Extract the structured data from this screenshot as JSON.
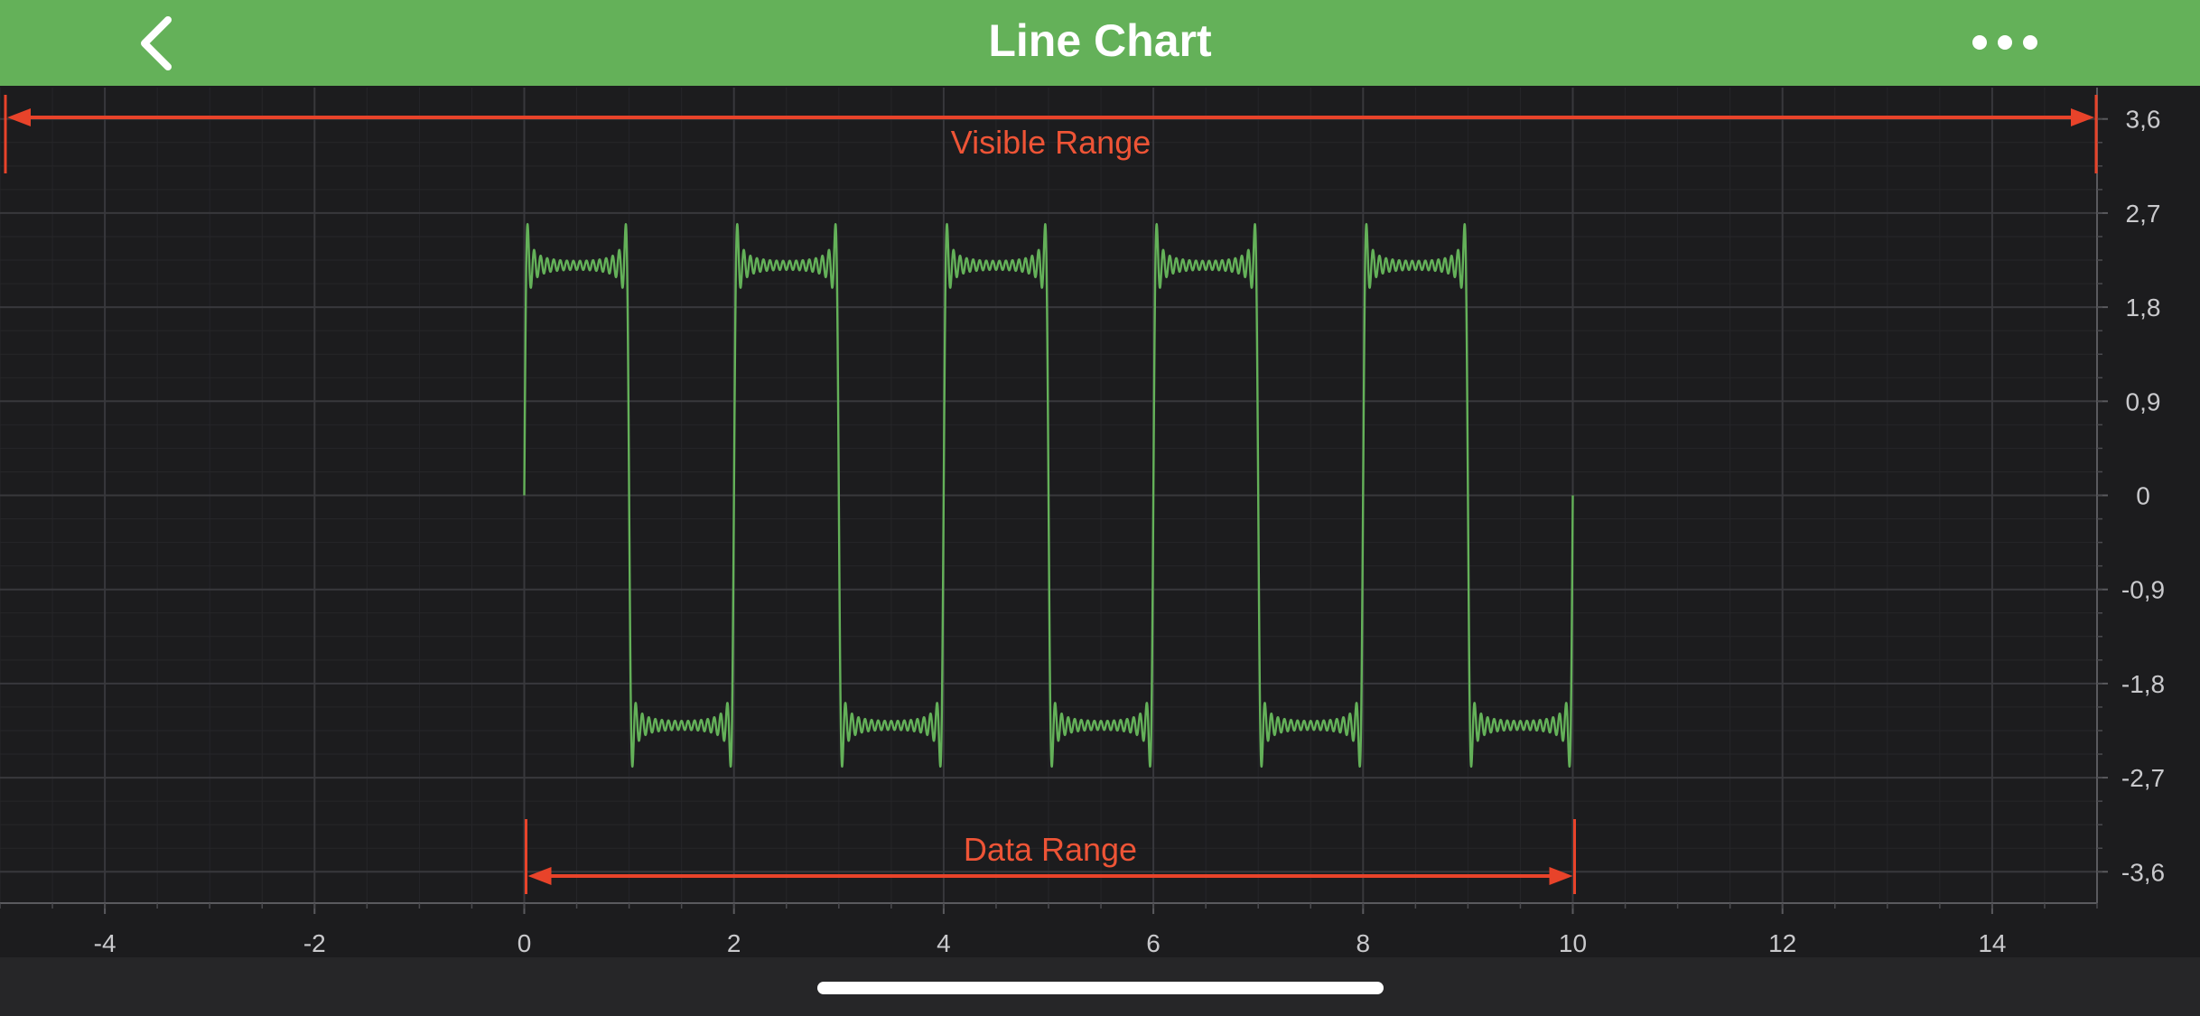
{
  "nav": {
    "title": "Line Chart",
    "back_icon": "chevron-left-icon",
    "more_icon": "more-horizontal-icon"
  },
  "colors": {
    "nav_bg": "#64b159",
    "chart_bg": "#1c1c1e",
    "series": "#64b159",
    "annotation": "#e8432a",
    "annotation_text": "#ee5436"
  },
  "chart_data": {
    "type": "line",
    "title": "",
    "xlabel": "",
    "ylabel": "",
    "xlim": [
      -5,
      15
    ],
    "ylim": [
      -3.9,
      3.9
    ],
    "x_ticks": [
      "-4",
      "-2",
      "0",
      "2",
      "4",
      "6",
      "8",
      "10",
      "12",
      "14"
    ],
    "y_ticks": [
      "3,6",
      "2,7",
      "1,8",
      "0,9",
      "0",
      "-0,9",
      "-1,8",
      "-2,7",
      "-3,6"
    ],
    "y_axis_side": "right",
    "grid": true,
    "series": [
      {
        "description": "square wave, sum of odd sine harmonics up to 31st, amplitude 4/pi * 2.2, period 2",
        "x_start": 0,
        "x_end": 10,
        "period": 2,
        "harmonics": [
          1,
          3,
          5,
          7,
          9,
          11,
          13,
          15,
          17,
          19,
          21,
          23,
          25,
          27,
          29,
          31
        ],
        "amplitude": 2.2,
        "peak": 3.3,
        "trough": -3.3,
        "plateau_high": 2.5,
        "plateau_low": -2.5
      }
    ],
    "annotations": [
      {
        "label": "Visible Range",
        "x_from": -5,
        "x_to": 15,
        "y": 3.6
      },
      {
        "label": "Data Range",
        "x_from": 0,
        "x_to": 10,
        "y": -3.5
      }
    ]
  }
}
